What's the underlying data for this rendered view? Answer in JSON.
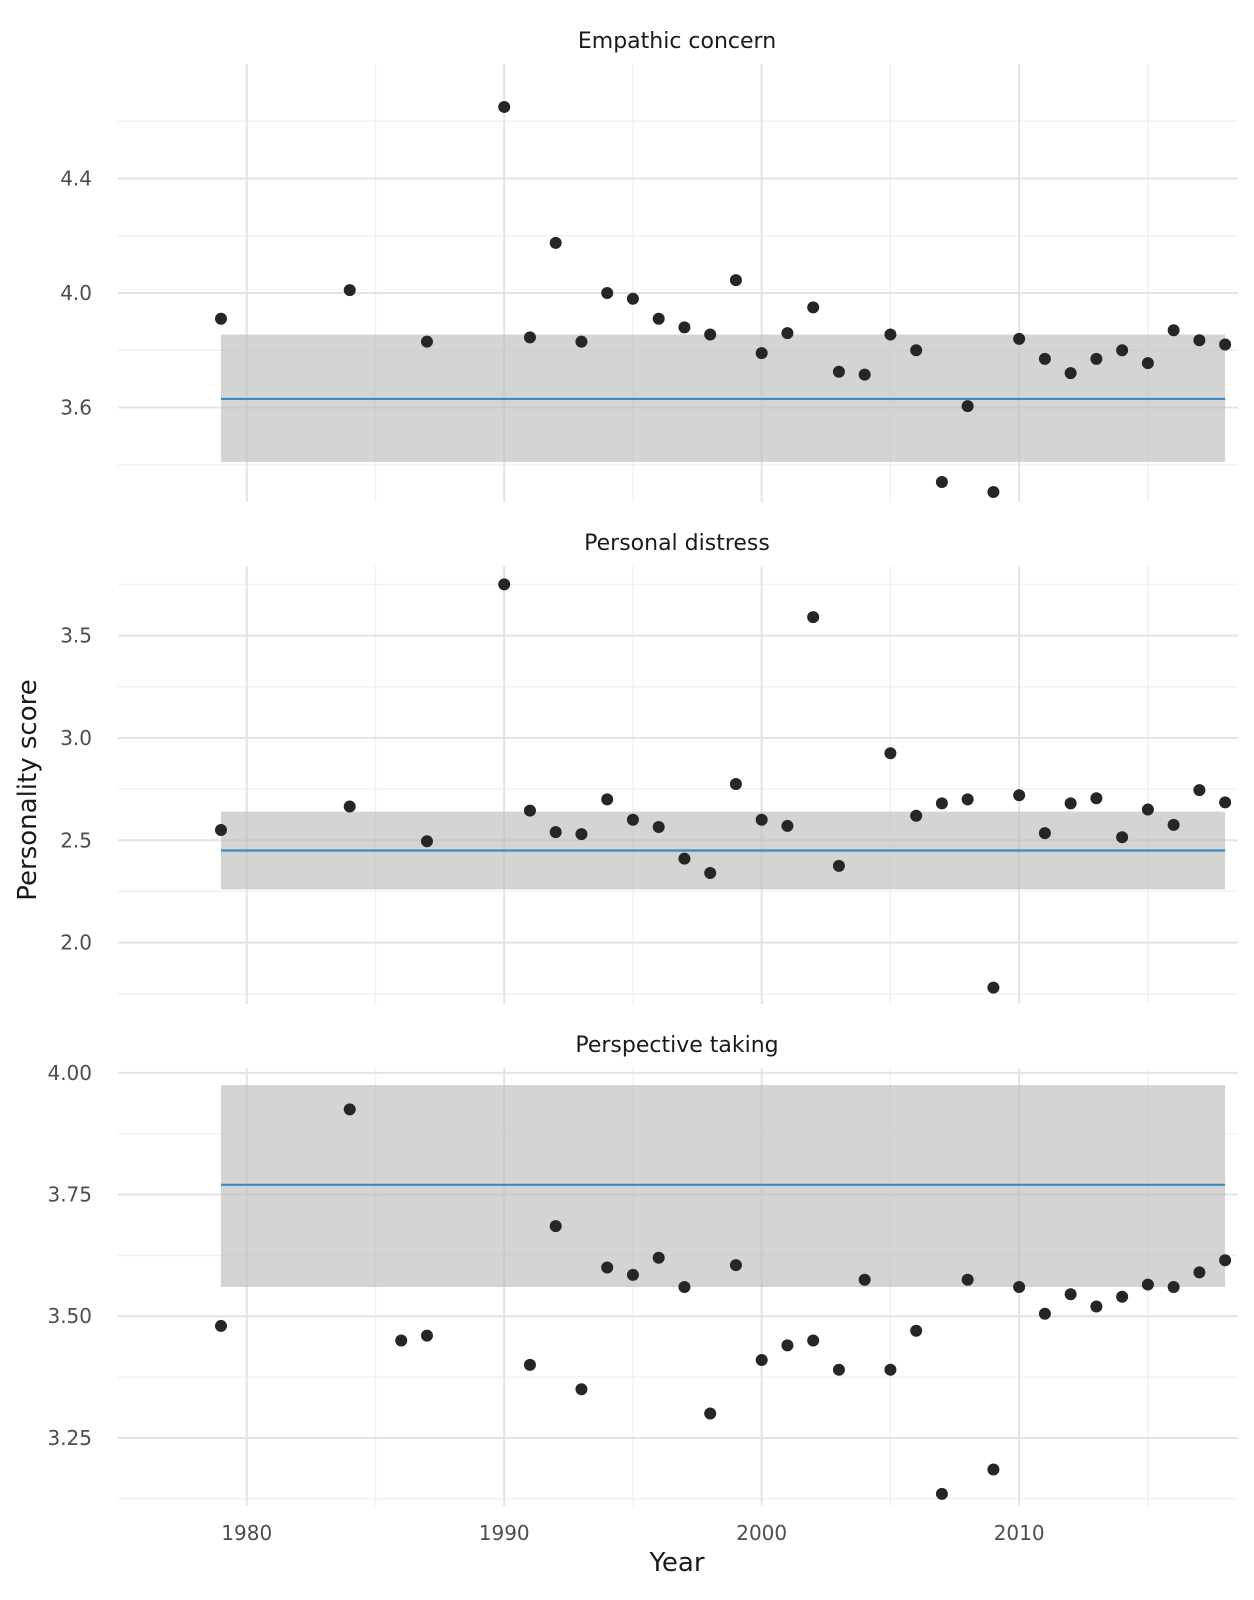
{
  "chart_data": {
    "type": "scatter",
    "xlabel": "Year",
    "ylabel": "Personality score",
    "xlim": [
      1975,
      2018.5
    ],
    "x_ticks": [
      1980,
      1990,
      2000,
      2010
    ],
    "x_tick_labels": [
      "1980",
      "1990",
      "2000",
      "2010"
    ],
    "point_color": "#262626",
    "line_color": "#3a8bbf",
    "band_color": "#bdbdbd",
    "panels": [
      {
        "title": "Empathic concern",
        "ylim": [
          3.27,
          4.8
        ],
        "y_ticks": [
          3.6,
          4.0,
          4.4
        ],
        "y_tick_labels": [
          "3.6",
          "4.0",
          "4.4"
        ],
        "fit": 3.63,
        "band": [
          3.41,
          3.855
        ],
        "points": [
          [
            1979,
            3.91
          ],
          [
            1984,
            4.01
          ],
          [
            1987,
            3.83
          ],
          [
            1990,
            4.65
          ],
          [
            1991,
            3.845
          ],
          [
            1992,
            4.175
          ],
          [
            1993,
            3.83
          ],
          [
            1994,
            4.0
          ],
          [
            1995,
            3.98
          ],
          [
            1996,
            3.91
          ],
          [
            1997,
            3.88
          ],
          [
            1998,
            3.855
          ],
          [
            1999,
            4.045
          ],
          [
            2000,
            3.79
          ],
          [
            2001,
            3.86
          ],
          [
            2002,
            3.95
          ],
          [
            2003,
            3.725
          ],
          [
            2004,
            3.715
          ],
          [
            2005,
            3.855
          ],
          [
            2006,
            3.8
          ],
          [
            2007,
            3.34
          ],
          [
            2008,
            3.605
          ],
          [
            2009,
            3.305
          ],
          [
            2010,
            3.84
          ],
          [
            2011,
            3.77
          ],
          [
            2012,
            3.72
          ],
          [
            2013,
            3.77
          ],
          [
            2014,
            3.8
          ],
          [
            2015,
            3.755
          ],
          [
            2016,
            3.87
          ],
          [
            2017,
            3.835
          ],
          [
            2018,
            3.82
          ]
        ]
      },
      {
        "title": "Personal distress",
        "ylim": [
          1.7,
          3.84
        ],
        "y_ticks": [
          2.0,
          2.5,
          3.0,
          3.5
        ],
        "y_tick_labels": [
          "2.0",
          "2.5",
          "3.0",
          "3.5"
        ],
        "fit": 2.45,
        "band": [
          2.26,
          2.64
        ],
        "points": [
          [
            1979,
            2.55
          ],
          [
            1984,
            2.665
          ],
          [
            1987,
            2.495
          ],
          [
            1990,
            3.75
          ],
          [
            1991,
            2.645
          ],
          [
            1992,
            2.54
          ],
          [
            1993,
            2.53
          ],
          [
            1994,
            2.7
          ],
          [
            1995,
            2.6
          ],
          [
            1996,
            2.565
          ],
          [
            1997,
            2.41
          ],
          [
            1998,
            2.34
          ],
          [
            1999,
            2.775
          ],
          [
            2000,
            2.6
          ],
          [
            2001,
            2.57
          ],
          [
            2002,
            3.59
          ],
          [
            2003,
            2.375
          ],
          [
            2005,
            2.925
          ],
          [
            2006,
            2.62
          ],
          [
            2007,
            2.68
          ],
          [
            2008,
            2.7
          ],
          [
            2009,
            1.78
          ],
          [
            2010,
            2.72
          ],
          [
            2011,
            2.535
          ],
          [
            2012,
            2.68
          ],
          [
            2013,
            2.705
          ],
          [
            2014,
            2.515
          ],
          [
            2015,
            2.65
          ],
          [
            2016,
            2.575
          ],
          [
            2017,
            2.745
          ],
          [
            2018,
            2.685
          ]
        ]
      },
      {
        "title": "Perspective taking",
        "ylim": [
          3.11,
          4.01
        ],
        "y_ticks": [
          3.25,
          3.5,
          3.75,
          4.0
        ],
        "y_tick_labels": [
          "3.25",
          "3.50",
          "3.75",
          "4.00"
        ],
        "fit": 3.77,
        "band": [
          3.56,
          3.975
        ],
        "points": [
          [
            1979,
            3.48
          ],
          [
            1984,
            3.925
          ],
          [
            1986,
            3.45
          ],
          [
            1987,
            3.46
          ],
          [
            1991,
            3.4
          ],
          [
            1992,
            3.685
          ],
          [
            1993,
            3.35
          ],
          [
            1994,
            3.6
          ],
          [
            1995,
            3.585
          ],
          [
            1996,
            3.62
          ],
          [
            1997,
            3.56
          ],
          [
            1998,
            3.3
          ],
          [
            1999,
            3.605
          ],
          [
            2000,
            3.41
          ],
          [
            2001,
            3.44
          ],
          [
            2002,
            3.45
          ],
          [
            2003,
            3.39
          ],
          [
            2004,
            3.575
          ],
          [
            2005,
            3.39
          ],
          [
            2006,
            3.47
          ],
          [
            2007,
            3.135
          ],
          [
            2008,
            3.575
          ],
          [
            2009,
            3.185
          ],
          [
            2010,
            3.56
          ],
          [
            2011,
            3.505
          ],
          [
            2012,
            3.545
          ],
          [
            2013,
            3.52
          ],
          [
            2014,
            3.54
          ],
          [
            2015,
            3.565
          ],
          [
            2016,
            3.56
          ],
          [
            2017,
            3.59
          ],
          [
            2018,
            3.615
          ]
        ]
      }
    ]
  }
}
